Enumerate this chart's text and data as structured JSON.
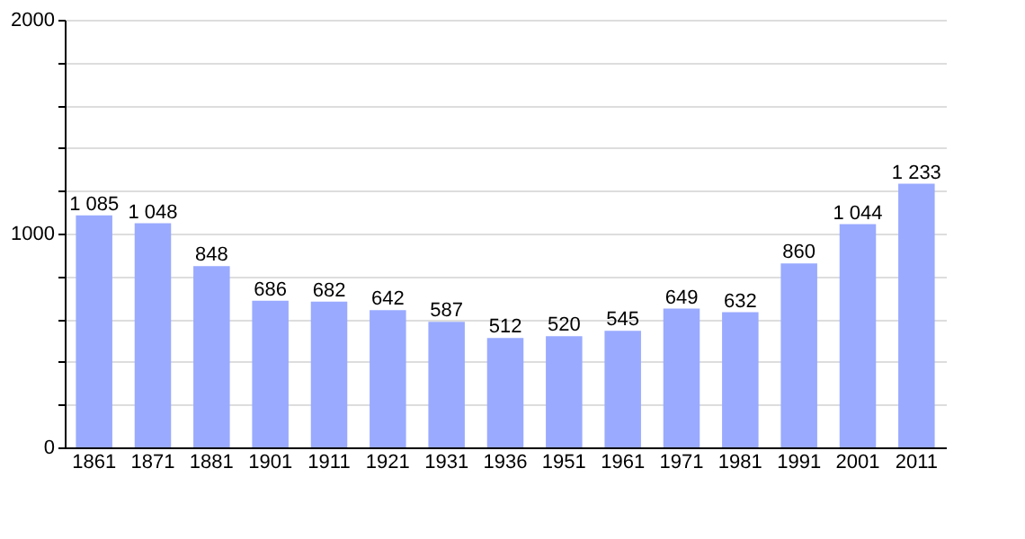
{
  "chart_data": {
    "type": "bar",
    "categories": [
      "1861",
      "1871",
      "1881",
      "1901",
      "1911",
      "1921",
      "1931",
      "1936",
      "1951",
      "1961",
      "1971",
      "1981",
      "1991",
      "2001",
      "2011"
    ],
    "values": [
      1085,
      1048,
      848,
      686,
      682,
      642,
      587,
      512,
      520,
      545,
      649,
      632,
      860,
      1044,
      1233
    ],
    "value_labels": [
      "1 085",
      "1 048",
      "848",
      "686",
      "682",
      "642",
      "587",
      "512",
      "520",
      "545",
      "649",
      "632",
      "860",
      "1 044",
      "1 233"
    ],
    "color": "#99aaff",
    "ylim": [
      0,
      2000
    ],
    "yticks": [
      0,
      {
        "value": 200,
        "label": null
      },
      {
        "value": 400,
        "label": null
      },
      {
        "value": 600,
        "label": null
      },
      {
        "value": 800,
        "label": null
      },
      1000,
      {
        "value": 1200,
        "label": null
      },
      {
        "value": 1400,
        "label": null
      },
      {
        "value": 1600,
        "label": null
      },
      {
        "value": 1800,
        "label": null
      },
      2000
    ],
    "grid": "y"
  }
}
